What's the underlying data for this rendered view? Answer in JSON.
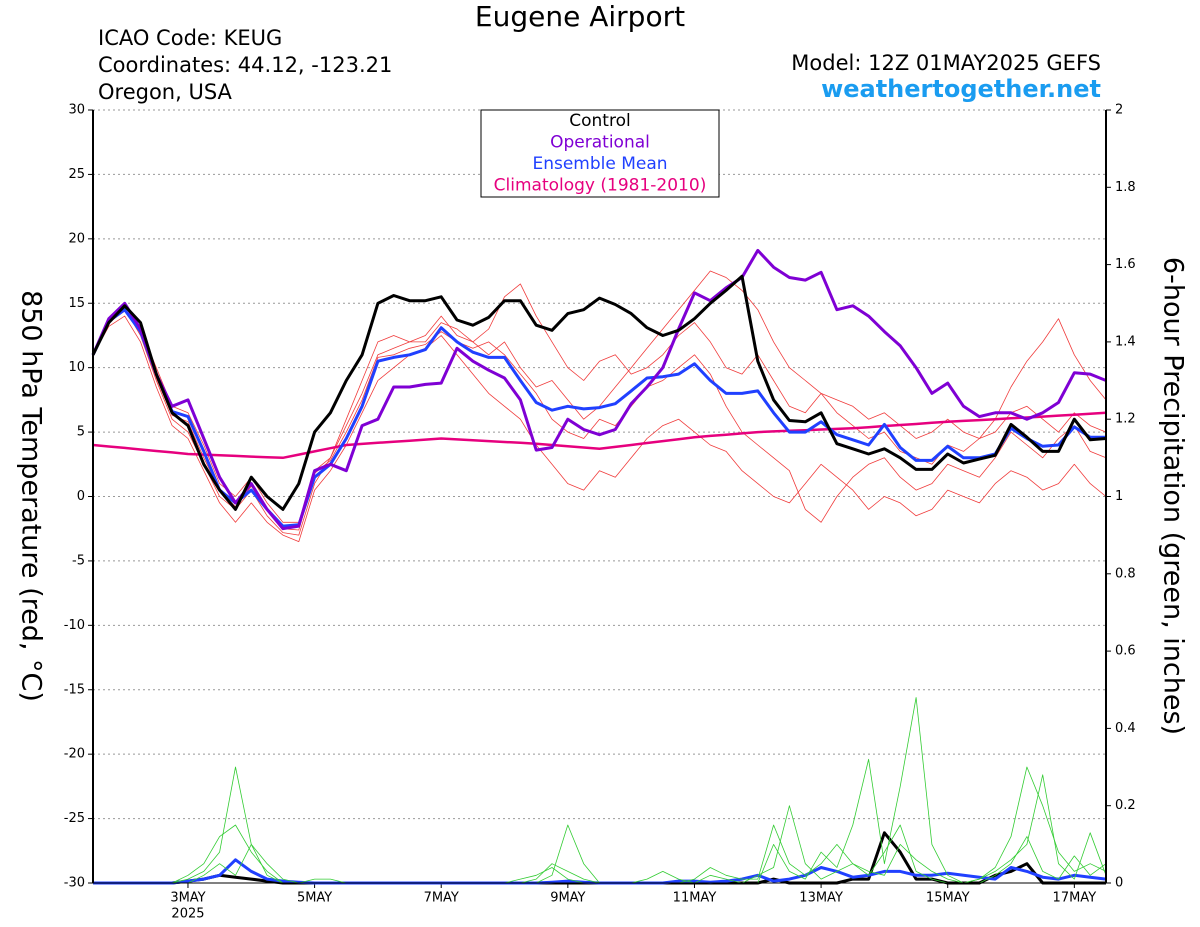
{
  "chart_data": {
    "type": "line",
    "title": "Eugene Airport",
    "info_left": [
      "ICAO Code: KEUG",
      "Coordinates: 44.12, -123.21",
      "Oregon, USA"
    ],
    "model": "Model: 12Z 01MAY2025 GEFS",
    "source": "weathertogether.net",
    "ylabel": "850 hPa Temperature (red, °C)",
    "y2label": "6-hour Precipitation (green, inches)",
    "x_year_label": "2025",
    "grid": true,
    "x": [
      1.5,
      1.75,
      2,
      2.25,
      2.5,
      2.75,
      3,
      3.25,
      3.5,
      3.75,
      4,
      4.25,
      4.5,
      4.75,
      5,
      5.25,
      5.5,
      5.75,
      6,
      6.25,
      6.5,
      6.75,
      7,
      7.25,
      7.5,
      7.75,
      8,
      8.25,
      8.5,
      8.75,
      9,
      9.25,
      9.5,
      9.75,
      10,
      10.25,
      10.5,
      10.75,
      11,
      11.25,
      11.5,
      11.75,
      12,
      12.25,
      12.5,
      12.75,
      13,
      13.25,
      13.5,
      13.75,
      14,
      14.25,
      14.5,
      14.75,
      15,
      15.25,
      15.5,
      15.75,
      16,
      16.25,
      16.5,
      16.75,
      17,
      17.25,
      17.5
    ],
    "xlim": [
      1.5,
      17.5
    ],
    "xticks": [
      {
        "value": 3,
        "label": "3MAY"
      },
      {
        "value": 5,
        "label": "5MAY"
      },
      {
        "value": 7,
        "label": "7MAY"
      },
      {
        "value": 9,
        "label": "9MAY"
      },
      {
        "value": 11,
        "label": "11MAY"
      },
      {
        "value": 13,
        "label": "13MAY"
      },
      {
        "value": 15,
        "label": "15MAY"
      },
      {
        "value": 17,
        "label": "17MAY"
      }
    ],
    "ylim": [
      -30,
      30
    ],
    "yticks": [
      -30,
      -25,
      -20,
      -15,
      -10,
      -5,
      0,
      5,
      10,
      15,
      20,
      25,
      30
    ],
    "y2lim": [
      0,
      2
    ],
    "y2ticks": [
      0,
      0.2,
      0.4,
      0.6,
      0.8,
      1,
      1.2,
      1.4,
      1.6,
      1.8,
      2
    ],
    "series": [
      {
        "name": "Control",
        "color": "#000000",
        "line_width": 3,
        "values": [
          11,
          13.5,
          14.8,
          13.5,
          9.5,
          6.5,
          5.5,
          2.5,
          0.5,
          -1,
          1.5,
          0,
          -1,
          1,
          5,
          6.5,
          9,
          11,
          15,
          15.6,
          15.2,
          15.2,
          15.5,
          13.7,
          13.3,
          13.9,
          15.2,
          15.2,
          13.3,
          12.9,
          14.2,
          14.5,
          15.4,
          14.9,
          14.2,
          13.1,
          12.5,
          12.9,
          13.8,
          15,
          16,
          17.1,
          10.5,
          7.5,
          5.9,
          5.8,
          6.5,
          4.1,
          3.7,
          3.3,
          3.7,
          3,
          2.1,
          2.1,
          3.3,
          2.6,
          2.9,
          3.2,
          5.6,
          4.6,
          3.5,
          3.5,
          6,
          4.4,
          4.5
        ]
      },
      {
        "name": "Operational",
        "color": "#7f00d4",
        "line_width": 3,
        "values": [
          11,
          13.8,
          15,
          13,
          9.5,
          7,
          7.5,
          4.5,
          1.5,
          -0.5,
          1,
          -1,
          -2.5,
          -2.3,
          2,
          2.5,
          2,
          5.5,
          6,
          8.5,
          8.5,
          8.7,
          8.8,
          11.5,
          10.5,
          9.8,
          9.2,
          7.5,
          3.6,
          3.8,
          6,
          5.2,
          4.8,
          5.2,
          7.2,
          8.5,
          10,
          13,
          15.8,
          15.2,
          16.2,
          17,
          19.1,
          17.8,
          17,
          16.8,
          17.4,
          14.5,
          14.8,
          14,
          12.8,
          11.7,
          10,
          8,
          8.8,
          7,
          6.2,
          6.5,
          6.5,
          6,
          6.5,
          7.3,
          9.6,
          9.5,
          9
        ]
      },
      {
        "name": "Ensemble Mean",
        "color": "#2040ff",
        "line_width": 3,
        "values": [
          11,
          13.6,
          14.5,
          12.8,
          9.5,
          6.6,
          6.2,
          3.5,
          0.5,
          -0.5,
          0.5,
          -1,
          -2.3,
          -2.2,
          1.5,
          2.5,
          4.5,
          7,
          10.5,
          10.8,
          11,
          11.4,
          13.1,
          12,
          11.2,
          10.8,
          10.8,
          9,
          7.3,
          6.7,
          7,
          6.8,
          6.9,
          7.2,
          8.2,
          9.2,
          9.3,
          9.5,
          10.3,
          9,
          8,
          8,
          8.2,
          6.5,
          5,
          5,
          5.8,
          4.8,
          4.4,
          4,
          5.6,
          3.8,
          2.8,
          2.8,
          3.9,
          3,
          3,
          3.3,
          5.3,
          4.5,
          3.9,
          4,
          5.4,
          4.6,
          4.6
        ]
      },
      {
        "name": "Climatology (1981-2010)",
        "color": "#e6007e",
        "line_width": 2.5,
        "values": [
          4,
          3.88,
          3.77,
          3.65,
          3.53,
          3.42,
          3.3,
          3.25,
          3.2,
          3.15,
          3.1,
          3.05,
          3,
          3.25,
          3.5,
          3.75,
          4,
          4.08,
          4.17,
          4.25,
          4.33,
          4.42,
          4.5,
          4.43,
          4.37,
          4.3,
          4.23,
          4.17,
          4.1,
          4,
          3.9,
          3.8,
          3.7,
          3.85,
          4,
          4.15,
          4.3,
          4.45,
          4.6,
          4.7,
          4.8,
          4.9,
          5,
          5.05,
          5.1,
          5.15,
          5.2,
          5.25,
          5.3,
          5.38,
          5.47,
          5.55,
          5.63,
          5.72,
          5.8,
          5.87,
          5.93,
          6,
          6.07,
          6.13,
          6.2,
          6.28,
          6.35,
          6.43,
          6.5
        ]
      },
      {
        "color": "#f03c3c",
        "line_width": 0.8,
        "values": [
          11,
          13.5,
          14.6,
          12.5,
          9,
          6,
          5,
          2.5,
          0,
          -1,
          0.5,
          -1.5,
          -2.8,
          -3,
          1,
          3,
          6,
          9,
          12,
          12.5,
          12,
          12.5,
          14,
          12.5,
          12,
          13,
          15.5,
          16.5,
          14,
          12,
          10,
          9,
          10.5,
          11,
          9.5,
          10,
          11,
          12.5,
          13.5,
          12,
          10,
          9.5,
          11,
          9,
          7,
          6.5,
          8,
          6.5,
          5.5,
          4.5,
          5,
          3.5,
          3,
          2.5,
          4,
          3.5,
          4.5,
          6,
          8.5,
          10.5,
          12,
          13.8,
          11,
          9,
          7.5
        ]
      },
      {
        "color": "#f03c3c",
        "line_width": 0.8,
        "values": [
          11,
          13.2,
          14,
          12,
          8.5,
          5.5,
          4.5,
          2,
          -0.5,
          -2,
          -0.5,
          -2,
          -3,
          -3.5,
          0.5,
          2,
          4,
          6.5,
          9,
          10,
          11,
          11.5,
          12.5,
          11,
          9.5,
          8,
          7,
          6,
          4,
          2.5,
          1,
          0.5,
          2,
          1.5,
          3,
          4.5,
          5.5,
          6,
          5,
          4,
          3.5,
          2,
          1,
          0,
          -0.5,
          1,
          2.5,
          1.5,
          0.5,
          -1,
          0,
          -0.5,
          -1.5,
          -1,
          0.5,
          0,
          -0.5,
          1,
          2,
          1.5,
          0.5,
          1,
          2.5,
          1,
          0
        ]
      },
      {
        "color": "#f03c3c",
        "line_width": 0.8,
        "values": [
          11,
          13.8,
          14.8,
          13,
          10,
          7,
          6.5,
          4,
          1,
          0,
          1.5,
          -0.5,
          -2,
          -2,
          2,
          3,
          5.5,
          8,
          11,
          11.5,
          12,
          12,
          13.5,
          13,
          12,
          11,
          12,
          10,
          8.5,
          9,
          7.5,
          6,
          7,
          8.5,
          10,
          11.5,
          13,
          14.5,
          16,
          17.5,
          17,
          16,
          14.5,
          12,
          10,
          9,
          8,
          7.5,
          7,
          6,
          6.5,
          5.5,
          4.5,
          5,
          6,
          5,
          4.5,
          5,
          6.5,
          7,
          6,
          5,
          6.5,
          5.5,
          5
        ]
      },
      {
        "color": "#f03c3c",
        "line_width": 0.8,
        "values": [
          11,
          13.5,
          14.4,
          12.8,
          9.2,
          6.3,
          5.8,
          3,
          0.5,
          -0.8,
          0.8,
          -1,
          -2.5,
          -2.6,
          1.8,
          2.8,
          5,
          7.5,
          10.8,
          11,
          11.5,
          11.8,
          12.8,
          12,
          11.5,
          12,
          11,
          9.5,
          8,
          6,
          5,
          4.5,
          6,
          5.5,
          7,
          8.5,
          9,
          10,
          11,
          9.5,
          7,
          5,
          4,
          3,
          2,
          -1,
          -2,
          0,
          1.5,
          2.5,
          3,
          1.5,
          0.5,
          1,
          2.5,
          2,
          1.5,
          3,
          5,
          4,
          3,
          4.5,
          5.5,
          3.5,
          3
        ]
      },
      {
        "axis": "y2",
        "color": "#33cc33",
        "line_width": 0.8,
        "values": [
          0,
          0,
          0,
          0,
          0,
          0,
          0.01,
          0.03,
          0.08,
          0.3,
          0.1,
          0.02,
          0,
          0,
          0,
          0,
          0,
          0,
          0,
          0,
          0,
          0,
          0,
          0,
          0,
          0,
          0,
          0,
          0,
          0.02,
          0.15,
          0.05,
          0,
          0,
          0,
          0,
          0,
          0,
          0,
          0,
          0,
          0,
          0.02,
          0.04,
          0.2,
          0.05,
          0.01,
          0.03,
          0.05,
          0.02,
          0.08,
          0.15,
          0.03,
          0.01,
          0,
          0,
          0,
          0.02,
          0.05,
          0.12,
          0.03,
          0.01,
          0.07,
          0.02,
          0.05
        ]
      },
      {
        "axis": "y2",
        "color": "#33cc33",
        "line_width": 0.8,
        "values": [
          0,
          0,
          0,
          0,
          0,
          0,
          0,
          0.02,
          0.05,
          0.02,
          0.1,
          0.05,
          0.01,
          0,
          0.01,
          0.01,
          0,
          0,
          0,
          0,
          0,
          0,
          0,
          0,
          0,
          0,
          0,
          0.01,
          0.02,
          0.04,
          0.01,
          0,
          0,
          0,
          0,
          0.01,
          0.03,
          0.01,
          0,
          0.02,
          0.01,
          0,
          0,
          0.1,
          0.03,
          0.01,
          0.08,
          0.04,
          0.15,
          0.32,
          0.05,
          0.25,
          0.48,
          0.1,
          0.02,
          0,
          0.01,
          0.03,
          0.06,
          0.1,
          0.28,
          0.05,
          0.01,
          0.13,
          0.02
        ]
      },
      {
        "axis": "y2",
        "color": "#33cc33",
        "line_width": 0.8,
        "values": [
          0,
          0,
          0,
          0,
          0,
          0,
          0.02,
          0.05,
          0.12,
          0.15,
          0.08,
          0.03,
          0,
          0,
          0,
          0,
          0,
          0,
          0,
          0,
          0,
          0,
          0,
          0,
          0,
          0,
          0,
          0,
          0.01,
          0.05,
          0.03,
          0.01,
          0,
          0,
          0,
          0,
          0,
          0,
          0.01,
          0.04,
          0.02,
          0.01,
          0.01,
          0.15,
          0.05,
          0.02,
          0.05,
          0.1,
          0.05,
          0.03,
          0.02,
          0.1,
          0.06,
          0.03,
          0.01,
          0,
          0.01,
          0.04,
          0.12,
          0.3,
          0.2,
          0.08,
          0.03,
          0.05,
          0.03
        ]
      },
      {
        "axis": "y2",
        "color": "#2040ff",
        "line_width": 3,
        "values": [
          0,
          0,
          0,
          0,
          0,
          0,
          0.005,
          0.01,
          0.02,
          0.06,
          0.03,
          0.01,
          0.005,
          0.002,
          0,
          0,
          0,
          0,
          0,
          0,
          0,
          0,
          0,
          0,
          0,
          0,
          0,
          0,
          0,
          0.002,
          0.005,
          0.002,
          0,
          0,
          0,
          0,
          0,
          0.005,
          0.005,
          0.002,
          0.005,
          0.01,
          0.02,
          0.005,
          0.01,
          0.02,
          0.04,
          0.03,
          0.015,
          0.02,
          0.03,
          0.03,
          0.02,
          0.02,
          0.025,
          0.02,
          0.015,
          0.01,
          0.04,
          0.03,
          0.015,
          0.01,
          0.02,
          0.015,
          0.01
        ]
      },
      {
        "axis": "y2",
        "color": "#000000",
        "line_width": 3,
        "values": [
          0,
          0,
          0,
          0,
          0,
          0,
          0.005,
          0.01,
          0.02,
          0.015,
          0.01,
          0.005,
          0,
          0,
          0,
          0,
          0,
          0,
          0,
          0,
          0,
          0,
          0,
          0,
          0,
          0,
          0,
          0,
          0,
          0,
          0,
          0,
          0,
          0,
          0,
          0,
          0,
          0,
          0,
          0,
          0,
          0,
          0,
          0.01,
          0,
          0,
          0,
          0,
          0.01,
          0.01,
          0.13,
          0.08,
          0.01,
          0.01,
          0,
          0,
          0,
          0.02,
          0.03,
          0.05,
          0,
          0,
          0,
          0,
          0
        ]
      }
    ]
  }
}
